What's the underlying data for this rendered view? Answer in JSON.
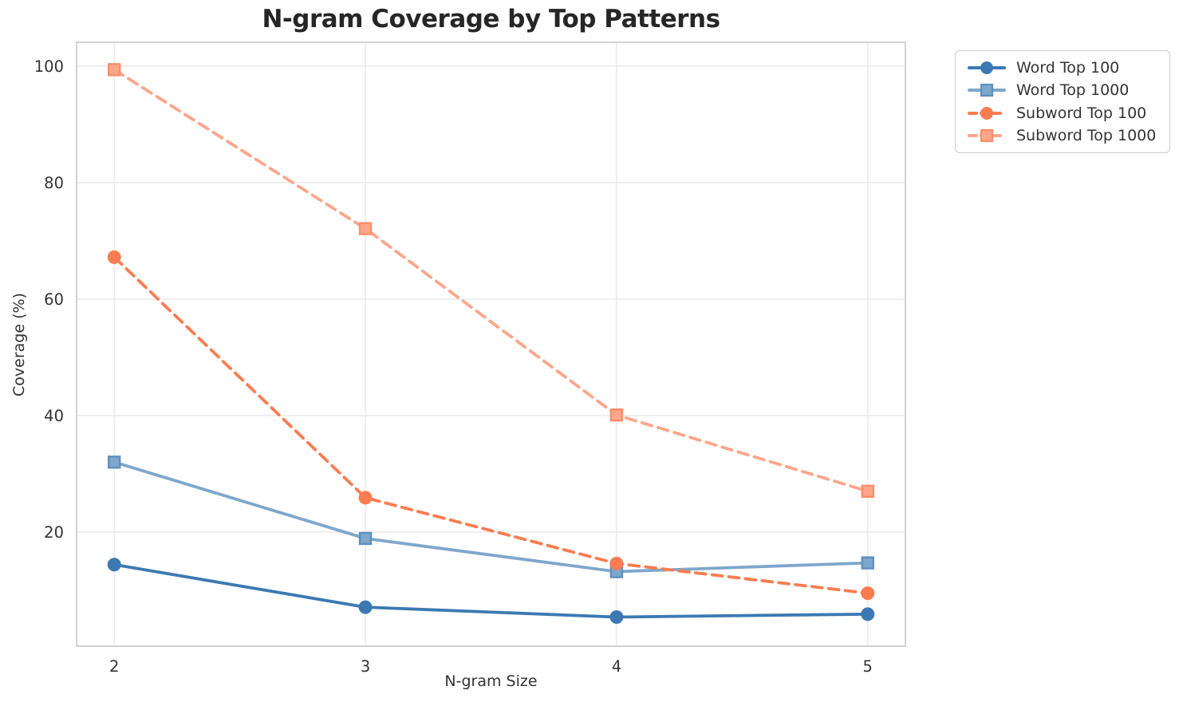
{
  "figure": {
    "title": "N-gram Coverage by Top Patterns"
  },
  "chart_data": {
    "type": "line",
    "title": "N-gram Coverage by Top Patterns",
    "xlabel": "N-gram Size",
    "ylabel": "Coverage (%)",
    "x": [
      2,
      3,
      4,
      5
    ],
    "xticks": [
      "2",
      "3",
      "4",
      "5"
    ],
    "yticks": [
      20,
      40,
      60,
      80,
      100
    ],
    "xlim": [
      1.85,
      5.15
    ],
    "ylim": [
      0.4,
      104.1
    ],
    "grid": true,
    "legend_position": "outside-top-right",
    "series": [
      {
        "name": "Word Top 100",
        "values": [
          14.4,
          7.1,
          5.4,
          5.9
        ],
        "color": "#3C79B2",
        "marker": "circle",
        "marker_edge": "#3C79B2",
        "line": "solid"
      },
      {
        "name": "Word Top 1000",
        "values": [
          32.0,
          18.9,
          13.2,
          14.7
        ],
        "color": "#7EA7CB",
        "marker": "square",
        "marker_edge": "#5C91BE",
        "line": "solid"
      },
      {
        "name": "Subword Top 100",
        "values": [
          67.2,
          25.9,
          14.6,
          9.5
        ],
        "color": "#FB7C50",
        "marker": "circle",
        "marker_edge": "#FB7C50",
        "line": "dashed"
      },
      {
        "name": "Subword Top 1000",
        "values": [
          99.4,
          72.1,
          40.1,
          27.0
        ],
        "color": "#FDA68B",
        "marker": "square",
        "marker_edge": "#FB8E68",
        "line": "dashed"
      }
    ]
  },
  "colors": {
    "grid": "#E8E8E8",
    "spine": "#D2D2D2",
    "tick_label": "#333333",
    "title": "#262626"
  }
}
